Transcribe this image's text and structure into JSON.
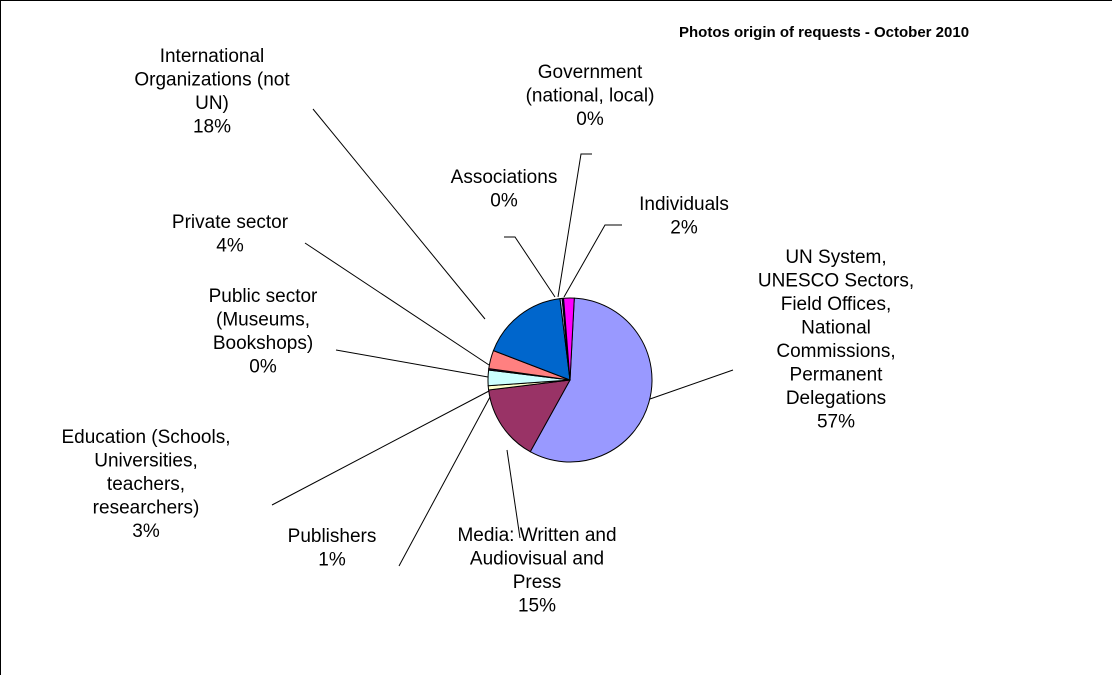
{
  "chart_data": {
    "type": "pie",
    "title": "Photos origin of requests - October 2010",
    "slices": [
      {
        "label": "UN System, UNESCO Sectors, Field Offices, National Commissions, Permanent Delegations",
        "value": 57,
        "display": "57%",
        "color": "#9999ff"
      },
      {
        "label": "Media: Written and Audiovisual and Press",
        "value": 15,
        "display": "15%",
        "color": "#993366"
      },
      {
        "label": "Publishers",
        "value": 1,
        "display": "1%",
        "color": "#ffffcc"
      },
      {
        "label": "Education (Schools, Universities, teachers, researchers)",
        "value": 3,
        "display": "3%",
        "color": "#ccffff"
      },
      {
        "label": "Public sector (Museums, Bookshops)",
        "value": 0,
        "display": "0%",
        "color": "#660066"
      },
      {
        "label": "Private sector",
        "value": 4,
        "display": "4%",
        "color": "#ff8080"
      },
      {
        "label": "International Organizations (not UN)",
        "value": 18,
        "display": "18%",
        "color": "#0066cc"
      },
      {
        "label": "Associations",
        "value": 0,
        "display": "0%",
        "color": "#ccccff"
      },
      {
        "label": "Government (national, local)",
        "value": 0,
        "display": "0%",
        "color": "#000080"
      },
      {
        "label": "Individuals",
        "value": 2,
        "display": "2%",
        "color": "#ff00ff"
      }
    ]
  },
  "labels": [
    {
      "lines": [
        "UN System,",
        "UNESCO Sectors,",
        "Field Offices,",
        "National",
        "Commissions,",
        "Permanent",
        "Delegations",
        "57%"
      ]
    },
    {
      "lines": [
        "Media: Written and",
        "Audiovisual and",
        "Press",
        "15%"
      ]
    },
    {
      "lines": [
        "Publishers",
        "1%"
      ]
    },
    {
      "lines": [
        "Education (Schools,",
        "Universities,",
        "teachers,",
        "researchers)",
        "3%"
      ]
    },
    {
      "lines": [
        "Public sector",
        "(Museums,",
        "Bookshops)",
        "0%"
      ]
    },
    {
      "lines": [
        "Private sector",
        "4%"
      ]
    },
    {
      "lines": [
        "International",
        "Organizations (not",
        "UN)",
        "18%"
      ]
    },
    {
      "lines": [
        "Associations",
        "0%"
      ]
    },
    {
      "lines": [
        "Government",
        "(national, local)",
        "0%"
      ]
    },
    {
      "lines": [
        "Individuals",
        "2%"
      ]
    }
  ]
}
